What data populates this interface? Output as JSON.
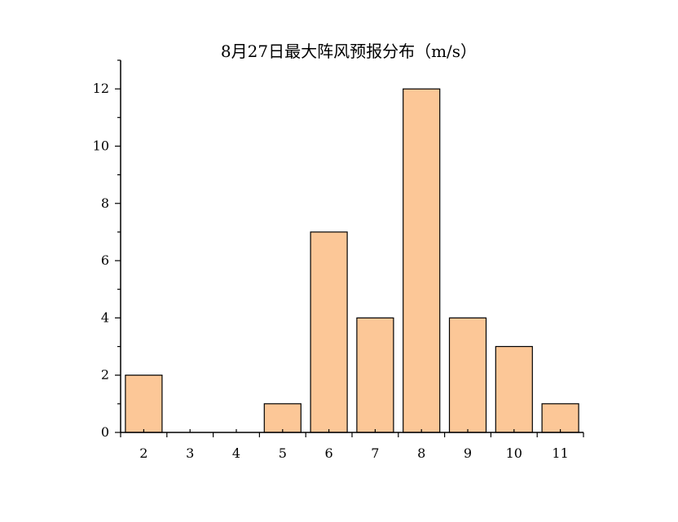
{
  "chart_data": {
    "type": "bar",
    "title": "8月27日最大阵风预报分布（m/s）",
    "xlabel": "",
    "ylabel": "",
    "categories": [
      "2",
      "3",
      "4",
      "5",
      "6",
      "7",
      "8",
      "9",
      "10",
      "11"
    ],
    "values": [
      2,
      0,
      0,
      1,
      7,
      4,
      12,
      4,
      3,
      1
    ],
    "ylim": [
      0,
      13
    ],
    "yticks": [
      "0",
      "2",
      "4",
      "6",
      "8",
      "10",
      "12"
    ],
    "bar_color": "#fcc797",
    "bar_stroke": "#000000",
    "grid": false,
    "legend": "none"
  }
}
